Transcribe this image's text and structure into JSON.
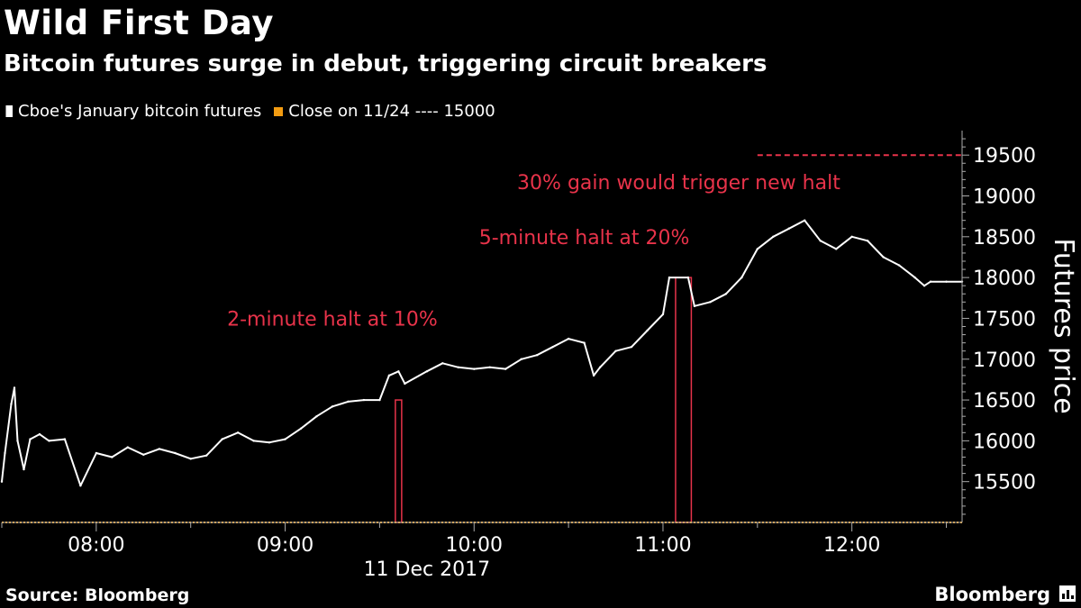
{
  "header": {
    "title": "Wild First Day",
    "subtitle": "Bitcoin futures surge in debut, triggering circuit breakers"
  },
  "legend": {
    "series_label": "Cboe's January bitcoin futures",
    "close_label": "Close on 11/24 ---- 15000"
  },
  "footer": {
    "source": "Source: Bloomberg",
    "brand": "Bloomberg"
  },
  "colors": {
    "background": "#000000",
    "series": "#ffffff",
    "halt": "#e8334a",
    "close_line": "#f39c12",
    "axis": "#aaaaaa"
  },
  "chart_data": {
    "type": "line",
    "title": "Wild First Day",
    "subtitle": "Bitcoin futures surge in debut, triggering circuit breakers",
    "ylabel": "Futures price",
    "xlabel": "11 Dec 2017",
    "ylim": [
      15000,
      19800
    ],
    "xlim": [
      "07:30",
      "12:35"
    ],
    "y_ticks": [
      15500,
      16000,
      16500,
      17000,
      17500,
      18000,
      18500,
      19000,
      19500
    ],
    "x_ticks": [
      "08:00",
      "09:00",
      "10:00",
      "11:00",
      "12:00"
    ],
    "grid": false,
    "legend_position": "top-left",
    "series": [
      {
        "name": "Cboe's January bitcoin futures",
        "x": [
          "07:30",
          "07:31",
          "07:33",
          "07:34",
          "07:35",
          "07:37",
          "07:39",
          "07:42",
          "07:45",
          "07:50",
          "07:55",
          "08:00",
          "08:05",
          "08:10",
          "08:15",
          "08:20",
          "08:25",
          "08:30",
          "08:35",
          "08:40",
          "08:45",
          "08:50",
          "08:55",
          "09:00",
          "09:05",
          "09:10",
          "09:15",
          "09:20",
          "09:25",
          "09:30",
          "09:33",
          "09:36",
          "09:38",
          "09:45",
          "09:50",
          "09:55",
          "10:00",
          "10:05",
          "10:10",
          "10:15",
          "10:20",
          "10:25",
          "10:30",
          "10:35",
          "10:38",
          "10:40",
          "10:45",
          "10:50",
          "10:55",
          "11:00",
          "11:02",
          "11:08",
          "11:10",
          "11:15",
          "11:20",
          "11:25",
          "11:30",
          "11:35",
          "11:40",
          "11:45",
          "11:50",
          "11:55",
          "12:00",
          "12:05",
          "12:10",
          "12:15",
          "12:20",
          "12:23",
          "12:25",
          "12:30",
          "12:35"
        ],
        "values": [
          15500,
          15850,
          16450,
          16650,
          16000,
          15650,
          16020,
          16080,
          16000,
          16020,
          15450,
          15850,
          15800,
          15920,
          15830,
          15900,
          15850,
          15780,
          15820,
          16020,
          16100,
          16000,
          15980,
          16020,
          16150,
          16300,
          16420,
          16480,
          16500,
          16500,
          16800,
          16850,
          16700,
          16850,
          16950,
          16900,
          16880,
          16900,
          16880,
          17000,
          17050,
          17150,
          17250,
          17200,
          16800,
          16900,
          17100,
          17150,
          17350,
          17550,
          18000,
          18000,
          17650,
          17700,
          17800,
          18000,
          18350,
          18500,
          18600,
          18700,
          18450,
          18350,
          18500,
          18450,
          18250,
          18150,
          18000,
          17900,
          17950,
          17950,
          17950
        ]
      }
    ],
    "reference_lines": [
      {
        "label": "Close on 11/24",
        "value": 15000
      },
      {
        "label": "30% gain",
        "value": 19500
      }
    ],
    "halts": [
      {
        "label": "2-minute halt at 10%",
        "start": "09:35",
        "end": "09:37",
        "price": 16500
      },
      {
        "label": "5-minute halt at 20%",
        "start": "11:04",
        "end": "11:09",
        "price": 18000
      }
    ],
    "annotations": [
      "30% gain would trigger new halt",
      "5-minute halt at 20%",
      "2-minute halt at 10%"
    ]
  }
}
